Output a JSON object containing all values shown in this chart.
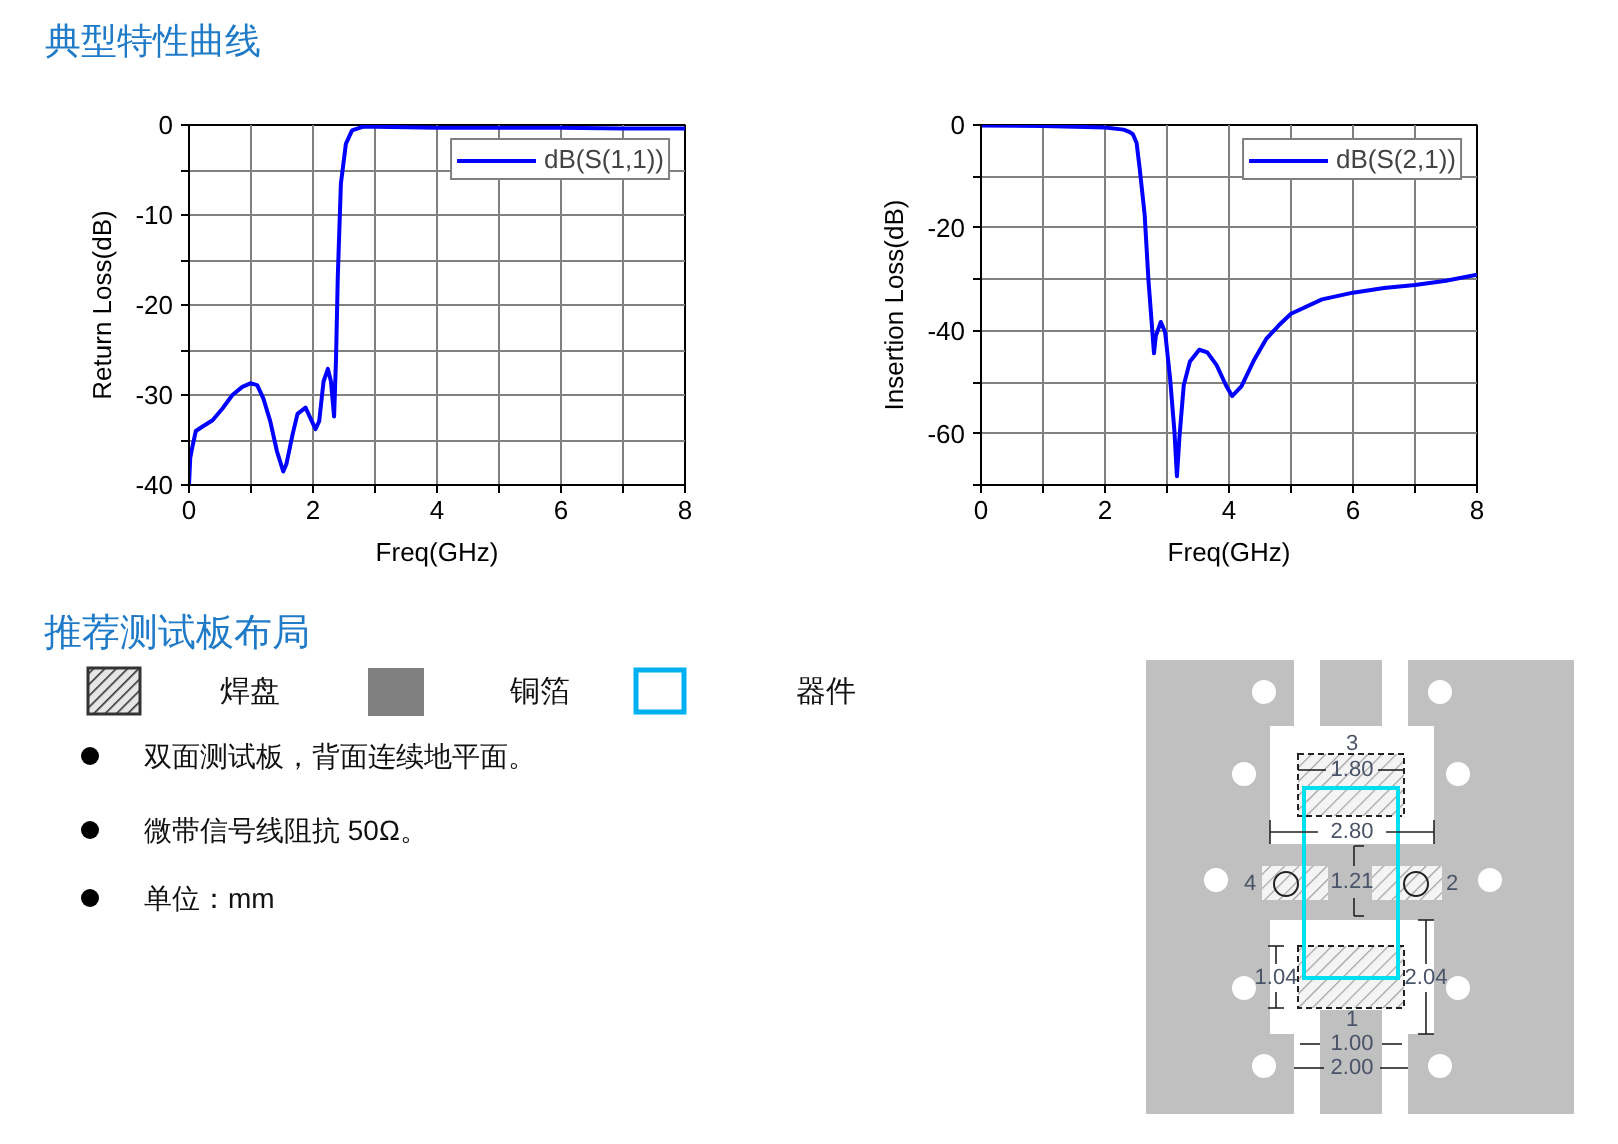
{
  "chart_data": [
    {
      "type": "line",
      "title": "典型特性曲线",
      "xlabel": "Freq(GHz)",
      "ylabel": "Return Loss(dB)",
      "xlim": [
        0,
        8
      ],
      "ylim": [
        -40,
        0
      ],
      "xticks": [
        0,
        {
          "value": 1,
          "label": null
        },
        2,
        {
          "value": 3,
          "label": null
        },
        4,
        {
          "value": 5,
          "label": null
        },
        6,
        {
          "value": 7,
          "label": null
        },
        8
      ],
      "yticks": [
        0,
        {
          "value": -5,
          "label": null
        },
        -10,
        {
          "value": -15,
          "label": null
        },
        -20,
        {
          "value": -25,
          "label": null
        },
        -30,
        {
          "value": -35,
          "label": null
        },
        -40
      ],
      "grid": true,
      "legend": "top right",
      "series": [
        {
          "name": "dB(S(1,1))",
          "color": "#0000ff",
          "x": [
            0,
            0.02,
            0.05,
            0.11,
            0.22,
            0.38,
            0.54,
            0.7,
            0.86,
            0.99,
            1.1,
            1.2,
            1.31,
            1.42,
            1.52,
            1.57,
            1.67,
            1.75,
            1.88,
            1.96,
            2.04,
            2.1,
            2.17,
            2.24,
            2.29,
            2.34,
            2.37,
            2.4,
            2.45,
            2.53,
            2.63,
            2.8,
            3.0,
            4.0,
            5.0,
            6.0,
            7.0,
            8.0
          ],
          "values": [
            -40,
            -37,
            -35.9,
            -34,
            -33.5,
            -32.8,
            -31.5,
            -30,
            -29.1,
            -28.7,
            -28.9,
            -30.4,
            -32.9,
            -36.3,
            -38.5,
            -37.7,
            -34.4,
            -32.1,
            -31.4,
            -32.6,
            -33.8,
            -32.9,
            -28.5,
            -27.1,
            -28.5,
            -32.4,
            -26.3,
            -16.8,
            -6.5,
            -2.1,
            -0.6,
            -0.2,
            -0.2,
            -0.3,
            -0.3,
            -0.3,
            -0.4,
            -0.4
          ]
        }
      ]
    },
    {
      "type": "line",
      "xlabel": "Freq(GHz)",
      "ylabel": "Insertion Loss(dB)",
      "xlim": [
        0,
        8
      ],
      "ylim": [
        -70,
        0
      ],
      "xticks": [
        0,
        {
          "value": 1,
          "label": null
        },
        2,
        {
          "value": 3,
          "label": null
        },
        4,
        {
          "value": 5,
          "label": null
        },
        6,
        {
          "value": 7,
          "label": null
        },
        8
      ],
      "yticks": [
        0,
        {
          "value": -10,
          "label": null
        },
        -20,
        {
          "value": -30,
          "label": null
        },
        -40,
        {
          "value": -50,
          "label": null
        },
        -60,
        {
          "value": -70,
          "label": null
        }
      ],
      "grid": true,
      "legend": "top right",
      "series": [
        {
          "name": "dB(S(2,1))",
          "color": "#0000ff",
          "x": [
            0,
            1,
            2,
            2.3,
            2.4,
            2.45,
            2.51,
            2.56,
            2.6,
            2.64,
            2.7,
            2.76,
            2.79,
            2.82,
            2.9,
            2.97,
            3.05,
            3.12,
            3.16,
            3.2,
            3.27,
            3.37,
            3.52,
            3.65,
            3.8,
            3.95,
            4.05,
            4.2,
            4.4,
            4.6,
            4.8,
            5.0,
            5.5,
            6.0,
            6.5,
            7.0,
            7.5,
            8.0
          ],
          "values": [
            -0.1,
            -0.2,
            -0.5,
            -0.9,
            -1.4,
            -1.8,
            -3.5,
            -8.5,
            -13,
            -17.5,
            -30,
            -39.6,
            -44.4,
            -41,
            -38.3,
            -40.3,
            -49.3,
            -59.6,
            -68.3,
            -60.8,
            -50.6,
            -46,
            -43.7,
            -44.2,
            -46.7,
            -50.6,
            -52.7,
            -50.8,
            -45.8,
            -41.6,
            -39,
            -36.7,
            -33.9,
            -32.6,
            -31.7,
            -31.1,
            -30.3,
            -29.1
          ]
        }
      ]
    },
    {
      "type": "other",
      "title": "推荐测试板布局",
      "annotations": [
        "焊盘",
        "铜箔",
        "器件",
        "双面测试板，背面连续地平面。",
        "微带信号线阻抗 50Ω。",
        "单位：mm",
        "3",
        "1.80",
        "2.80",
        "4",
        "1.21",
        "2",
        "1.04",
        "2.04",
        "1",
        "1.00",
        "2.00"
      ]
    }
  ]
}
